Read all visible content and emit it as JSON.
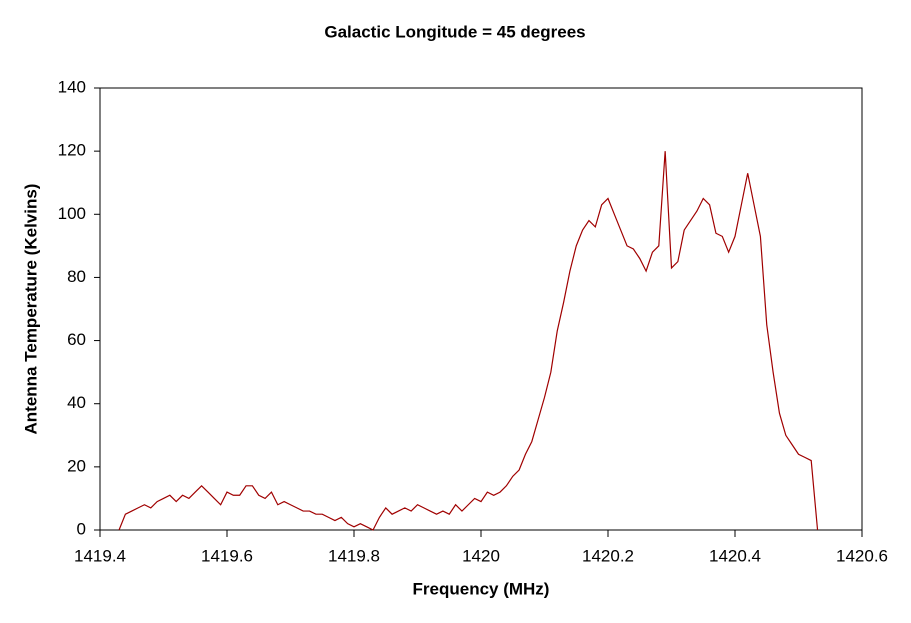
{
  "chart_data": {
    "type": "line",
    "title": "Galactic Longitude = 45 degrees",
    "x_label": "Frequency (MHz)",
    "y_label": "Antenna Temperature (Kelvins)",
    "color": "#a00000",
    "x": [
      1419.43,
      1419.44,
      1419.45,
      1419.46,
      1419.47,
      1419.48,
      1419.49,
      1419.5,
      1419.51,
      1419.52,
      1419.53,
      1419.54,
      1419.55,
      1419.56,
      1419.57,
      1419.58,
      1419.59,
      1419.6,
      1419.61,
      1419.62,
      1419.63,
      1419.64,
      1419.65,
      1419.66,
      1419.67,
      1419.68,
      1419.69,
      1419.7,
      1419.71,
      1419.72,
      1419.73,
      1419.74,
      1419.75,
      1419.76,
      1419.77,
      1419.78,
      1419.79,
      1419.8,
      1419.81,
      1419.82,
      1419.83,
      1419.84,
      1419.85,
      1419.86,
      1419.87,
      1419.88,
      1419.89,
      1419.9,
      1419.91,
      1419.92,
      1419.93,
      1419.94,
      1419.95,
      1419.96,
      1419.97,
      1419.98,
      1419.99,
      1420.0,
      1420.01,
      1420.02,
      1420.03,
      1420.04,
      1420.05,
      1420.06,
      1420.07,
      1420.08,
      1420.09,
      1420.1,
      1420.11,
      1420.12,
      1420.13,
      1420.14,
      1420.15,
      1420.16,
      1420.17,
      1420.18,
      1420.19,
      1420.2,
      1420.21,
      1420.22,
      1420.23,
      1420.24,
      1420.25,
      1420.26,
      1420.27,
      1420.28,
      1420.29,
      1420.3,
      1420.31,
      1420.32,
      1420.33,
      1420.34,
      1420.35,
      1420.36,
      1420.37,
      1420.38,
      1420.39,
      1420.4,
      1420.41,
      1420.42,
      1420.43,
      1420.44,
      1420.45,
      1420.46,
      1420.47,
      1420.48,
      1420.49,
      1420.5,
      1420.51,
      1420.52,
      1420.53
    ],
    "values": [
      0,
      5,
      6,
      7,
      8,
      7,
      9,
      10,
      11,
      9,
      11,
      10,
      12,
      14,
      12,
      10,
      8,
      12,
      11,
      11,
      14,
      14,
      11,
      10,
      12,
      8,
      9,
      8,
      7,
      6,
      6,
      5,
      5,
      4,
      3,
      4,
      2,
      1,
      2,
      1,
      0,
      4,
      7,
      5,
      6,
      7,
      6,
      8,
      7,
      6,
      5,
      6,
      5,
      8,
      6,
      8,
      10,
      9,
      12,
      11,
      12,
      14,
      17,
      19,
      24,
      28,
      35,
      42,
      50,
      63,
      72,
      82,
      90,
      95,
      98,
      96,
      103,
      105,
      100,
      95,
      90,
      89,
      86,
      82,
      88,
      90,
      120,
      83,
      85,
      95,
      98,
      101,
      105,
      103,
      94,
      93,
      88,
      93,
      103,
      113,
      103,
      93,
      65,
      50,
      37,
      30,
      27,
      24,
      23,
      22,
      0
    ],
    "xlim": [
      1419.4,
      1420.6
    ],
    "xticks": [
      1419.4,
      1419.6,
      1419.8,
      1420,
      1420.2,
      1420.4,
      1420.6
    ],
    "ylim": [
      0,
      140
    ],
    "yticks": [
      0,
      20,
      40,
      60,
      80,
      100,
      120,
      140
    ]
  }
}
